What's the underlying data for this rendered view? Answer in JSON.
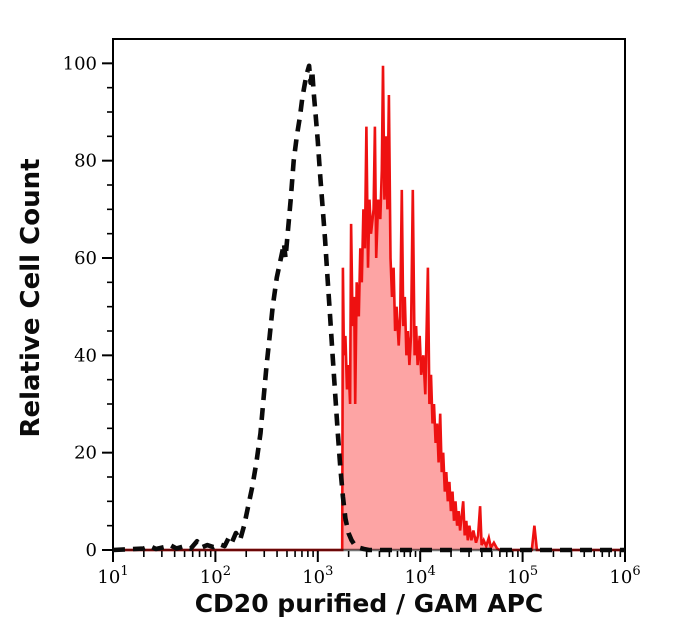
{
  "chart_data": {
    "type": "area",
    "title": "",
    "xlabel": "CD20 purified / GAM APC",
    "ylabel": "Relative Cell Count",
    "x_scale": "log10",
    "xlim_log": [
      1,
      6
    ],
    "ylim": [
      0,
      105
    ],
    "grid": false,
    "legend": "none",
    "x_ticks": {
      "base": "10",
      "exponents": [
        "1",
        "2",
        "3",
        "4",
        "5",
        "6"
      ],
      "logs": [
        1,
        2,
        3,
        4,
        5,
        6
      ],
      "minor_multiples": [
        2,
        3,
        4,
        5,
        6,
        7,
        8,
        9
      ]
    },
    "y_ticks": {
      "labels": [
        "0",
        "20",
        "40",
        "60",
        "80",
        "100"
      ],
      "values": [
        0,
        20,
        40,
        60,
        80,
        100
      ],
      "minor_step": 5
    },
    "colors": {
      "red_line": "#ee1111",
      "red_fill": "#fda4a4",
      "dashed_line": "#0a0a0a",
      "axis": "#000000",
      "baseline_overlap": "rgba(0,0,0,0.55)"
    },
    "series": [
      {
        "name": "dashed-outline-histogram",
        "style": "dashed",
        "color": "#0a0a0a",
        "points": [
          [
            1.0,
            0
          ],
          [
            1.3,
            0.3
          ],
          [
            1.36,
            0.8
          ],
          [
            1.42,
            0.2
          ],
          [
            1.5,
            0.6
          ],
          [
            1.56,
            1.0
          ],
          [
            1.62,
            0.3
          ],
          [
            1.7,
            0.8
          ],
          [
            1.76,
            0.3
          ],
          [
            1.82,
            1.8
          ],
          [
            1.86,
            0.5
          ],
          [
            1.92,
            1.0
          ],
          [
            1.98,
            0.6
          ],
          [
            2.04,
            1.2
          ],
          [
            2.09,
            0.8
          ],
          [
            2.13,
            2.5
          ],
          [
            2.16,
            1.5
          ],
          [
            2.2,
            3.5
          ],
          [
            2.24,
            2.0
          ],
          [
            2.28,
            5
          ],
          [
            2.32,
            9
          ],
          [
            2.36,
            13
          ],
          [
            2.4,
            18
          ],
          [
            2.44,
            24
          ],
          [
            2.47,
            31
          ],
          [
            2.5,
            38
          ],
          [
            2.53,
            44
          ],
          [
            2.56,
            50
          ],
          [
            2.6,
            56
          ],
          [
            2.65,
            61
          ],
          [
            2.67,
            63
          ],
          [
            2.685,
            60
          ],
          [
            2.71,
            66
          ],
          [
            2.735,
            72
          ],
          [
            2.765,
            80
          ],
          [
            2.795,
            85
          ],
          [
            2.825,
            89
          ],
          [
            2.85,
            93
          ],
          [
            2.875,
            96
          ],
          [
            2.895,
            98
          ],
          [
            2.915,
            99.5
          ],
          [
            2.93,
            96
          ],
          [
            2.945,
            98.5
          ],
          [
            2.96,
            94
          ],
          [
            2.98,
            89
          ],
          [
            3.0,
            84
          ],
          [
            3.02,
            78
          ],
          [
            3.045,
            71
          ],
          [
            3.07,
            64
          ],
          [
            3.095,
            56
          ],
          [
            3.12,
            48
          ],
          [
            3.145,
            40
          ],
          [
            3.17,
            32
          ],
          [
            3.195,
            24
          ],
          [
            3.22,
            17
          ],
          [
            3.245,
            11
          ],
          [
            3.27,
            6.5
          ],
          [
            3.3,
            3.5
          ],
          [
            3.33,
            2
          ],
          [
            3.36,
            1
          ],
          [
            3.4,
            0.5
          ],
          [
            3.45,
            0.2
          ],
          [
            3.5,
            0
          ],
          [
            6.0,
            0
          ]
        ]
      },
      {
        "name": "red-filled-histogram",
        "style": "filled",
        "color": "#ee1111",
        "fill": "#fda4a4",
        "points": [
          [
            1.0,
            0
          ],
          [
            3.238,
            0
          ],
          [
            3.245,
            58
          ],
          [
            3.255,
            40
          ],
          [
            3.27,
            44
          ],
          [
            3.285,
            33
          ],
          [
            3.3,
            38
          ],
          [
            3.315,
            30
          ],
          [
            3.325,
            67
          ],
          [
            3.34,
            46
          ],
          [
            3.355,
            52
          ],
          [
            3.365,
            30
          ],
          [
            3.38,
            55
          ],
          [
            3.4,
            48
          ],
          [
            3.415,
            62
          ],
          [
            3.43,
            55
          ],
          [
            3.445,
            70
          ],
          [
            3.46,
            62
          ],
          [
            3.475,
            87
          ],
          [
            3.49,
            58
          ],
          [
            3.505,
            72
          ],
          [
            3.52,
            65
          ],
          [
            3.545,
            70
          ],
          [
            3.558,
            87
          ],
          [
            3.57,
            60
          ],
          [
            3.59,
            72
          ],
          [
            3.61,
            68
          ],
          [
            3.625,
            78
          ],
          [
            3.637,
            99.5
          ],
          [
            3.65,
            72
          ],
          [
            3.665,
            85
          ],
          [
            3.68,
            70
          ],
          [
            3.694,
            93.5
          ],
          [
            3.71,
            60
          ],
          [
            3.725,
            52
          ],
          [
            3.74,
            58
          ],
          [
            3.755,
            45
          ],
          [
            3.77,
            50
          ],
          [
            3.79,
            42
          ],
          [
            3.805,
            48
          ],
          [
            3.82,
            74
          ],
          [
            3.835,
            46
          ],
          [
            3.85,
            52
          ],
          [
            3.865,
            40
          ],
          [
            3.88,
            45
          ],
          [
            3.895,
            38
          ],
          [
            3.91,
            44
          ],
          [
            3.928,
            74
          ],
          [
            3.945,
            40
          ],
          [
            3.96,
            46
          ],
          [
            3.975,
            38
          ],
          [
            3.995,
            44
          ],
          [
            4.01,
            36
          ],
          [
            4.03,
            40
          ],
          [
            4.05,
            32
          ],
          [
            4.075,
            58
          ],
          [
            4.09,
            30
          ],
          [
            4.105,
            36
          ],
          [
            4.12,
            26
          ],
          [
            4.135,
            30
          ],
          [
            4.15,
            22
          ],
          [
            4.165,
            26
          ],
          [
            4.18,
            18
          ],
          [
            4.195,
            28
          ],
          [
            4.21,
            16
          ],
          [
            4.225,
            20
          ],
          [
            4.24,
            12
          ],
          [
            4.255,
            16
          ],
          [
            4.27,
            10
          ],
          [
            4.285,
            14
          ],
          [
            4.3,
            8
          ],
          [
            4.315,
            12
          ],
          [
            4.33,
            6
          ],
          [
            4.345,
            10
          ],
          [
            4.36,
            5
          ],
          [
            4.375,
            8
          ],
          [
            4.39,
            4
          ],
          [
            4.405,
            7
          ],
          [
            4.42,
            10
          ],
          [
            4.435,
            3
          ],
          [
            4.45,
            6
          ],
          [
            4.465,
            2
          ],
          [
            4.48,
            5
          ],
          [
            4.5,
            2
          ],
          [
            4.52,
            4
          ],
          [
            4.545,
            1.5
          ],
          [
            4.565,
            3
          ],
          [
            4.585,
            9
          ],
          [
            4.6,
            1
          ],
          [
            4.62,
            2
          ],
          [
            4.645,
            0.8
          ],
          [
            4.67,
            2.5
          ],
          [
            4.69,
            0.5
          ],
          [
            4.72,
            1.5
          ],
          [
            4.75,
            0.3
          ],
          [
            4.78,
            0
          ],
          [
            5.09,
            0
          ],
          [
            5.115,
            5
          ],
          [
            5.14,
            0
          ],
          [
            6.0,
            0
          ]
        ]
      }
    ]
  }
}
